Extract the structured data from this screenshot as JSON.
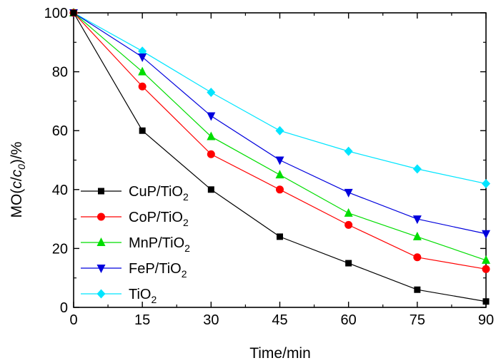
{
  "chart_data": {
    "type": "line",
    "title": "",
    "xlabel": "Time/min",
    "ylabel": {
      "prefix": "MO(",
      "italic": "c",
      "mid": "/",
      "italic2": "c",
      "sub": "0",
      "suffix": ")/%"
    },
    "xlim": [
      0,
      90
    ],
    "ylim": [
      0,
      100
    ],
    "x_ticks": [
      "0",
      "15",
      "30",
      "45",
      "60",
      "75",
      "90"
    ],
    "y_ticks": [
      "0",
      "20",
      "40",
      "60",
      "80",
      "100"
    ],
    "grid": false,
    "legend_position": "lower-left",
    "x": [
      0,
      15,
      30,
      45,
      60,
      75,
      90
    ],
    "series": [
      {
        "name": "CuP/TiO",
        "name_sub": "2",
        "color": "#000000",
        "marker": "square",
        "values": [
          100,
          60,
          40,
          24,
          15,
          6,
          2
        ]
      },
      {
        "name": "CoP/TiO",
        "name_sub": "2",
        "color": "#ff0000",
        "marker": "circle",
        "values": [
          100,
          75,
          52,
          40,
          28,
          17,
          13
        ]
      },
      {
        "name": "MnP/TiO",
        "name_sub": "2",
        "color": "#00dd00",
        "marker": "triangle-up",
        "values": [
          100,
          80,
          58,
          45,
          32,
          24,
          16
        ]
      },
      {
        "name": "FeP/TiO",
        "name_sub": "2",
        "color": "#0000dd",
        "marker": "triangle-down",
        "values": [
          100,
          85,
          65,
          50,
          39,
          30,
          25
        ]
      },
      {
        "name": "TiO",
        "name_sub": "2",
        "color": "#00e5ff",
        "marker": "diamond",
        "values": [
          100,
          87,
          73,
          60,
          53,
          47,
          42
        ]
      }
    ]
  }
}
